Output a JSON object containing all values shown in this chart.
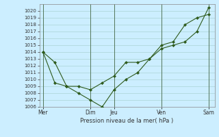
{
  "xlabel": "Pression niveau de la mer( hPa )",
  "ylim": [
    1006,
    1021
  ],
  "yticks": [
    1006,
    1007,
    1008,
    1009,
    1010,
    1011,
    1012,
    1013,
    1014,
    1015,
    1016,
    1017,
    1018,
    1019,
    1020
  ],
  "bg_color": "#cceeff",
  "line_color": "#2d5a1b",
  "grid_color": "#aad4d4",
  "xtick_labels": [
    "Mer",
    "Dim",
    "Jeu",
    "Ven",
    "Sam"
  ],
  "xtick_positions": [
    0,
    4,
    6,
    10,
    14
  ],
  "vline_positions": [
    0,
    4,
    6,
    10,
    14
  ],
  "series1_x": [
    0,
    1,
    2,
    3,
    4,
    5,
    6,
    7,
    8,
    9,
    10,
    11,
    12,
    13,
    14
  ],
  "series1_y": [
    1014.0,
    1012.5,
    1009.0,
    1009.0,
    1008.5,
    1009.5,
    1010.5,
    1012.5,
    1012.5,
    1013.0,
    1015.0,
    1015.5,
    1018.0,
    1019.0,
    1019.5
  ],
  "series2_x": [
    0,
    1,
    2,
    3,
    4,
    5,
    6,
    7,
    8,
    9,
    10,
    11,
    12,
    13,
    14
  ],
  "series2_y": [
    1014.0,
    1009.5,
    1009.0,
    1008.0,
    1007.0,
    1006.0,
    1008.5,
    1010.0,
    1011.0,
    1013.0,
    1014.5,
    1015.0,
    1015.5,
    1017.0,
    1020.5
  ],
  "ylabel_fontsize": 5,
  "xlabel_fontsize": 6,
  "xtick_fontsize": 5.5,
  "line_width": 0.8,
  "marker_size": 2.2
}
